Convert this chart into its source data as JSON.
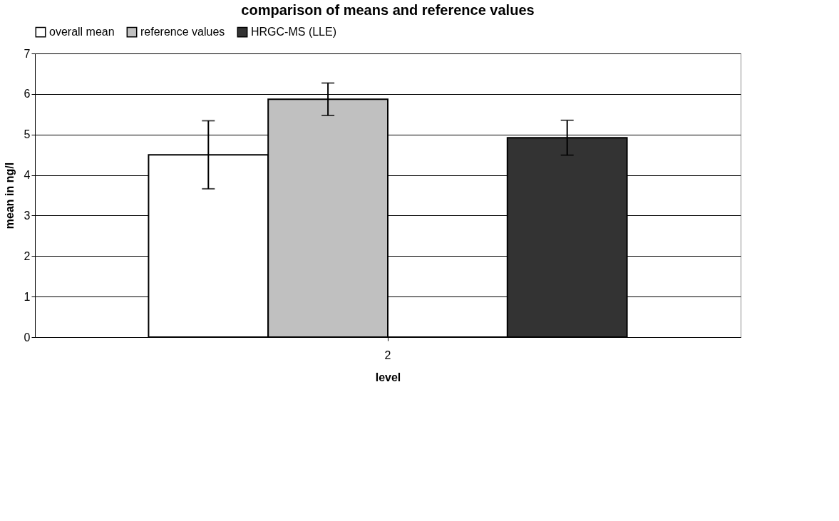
{
  "chart_data": {
    "type": "bar",
    "title": "comparison of means and reference values",
    "xlabel": "level",
    "ylabel": "mean in ng/l",
    "categories": [
      "2"
    ],
    "series": [
      {
        "name": "overall mean",
        "color": "#ffffff",
        "values": [
          4.5
        ],
        "errors": [
          0.84
        ]
      },
      {
        "name": "reference values",
        "color": "#c0c0c0",
        "values": [
          5.87
        ],
        "errors": [
          0.4
        ]
      },
      {
        "color": "#000000",
        "values": [
          0
        ]
      },
      {
        "name": "HRGC-MS (LLE)",
        "color": "#333333",
        "values": [
          4.92
        ],
        "errors": [
          0.43
        ]
      }
    ],
    "ylim": [
      0,
      7
    ],
    "yticks": [
      0,
      1,
      2,
      3,
      4,
      5,
      6,
      7
    ],
    "grid": "y",
    "legend": "top"
  }
}
